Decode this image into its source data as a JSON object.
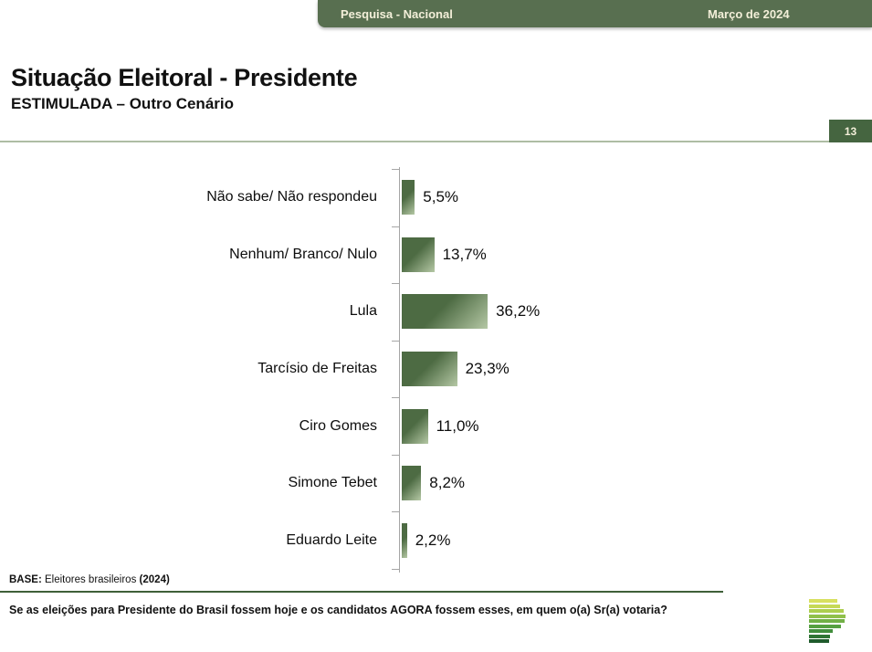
{
  "banner": {
    "left_label": "Pesquisa - Nacional",
    "right_label": "Março de 2024"
  },
  "header": {
    "title": "Situação Eleitoral - Presidente",
    "subtitle": "ESTIMULADA – Outro Cenário",
    "page_number": "13"
  },
  "chart_data": {
    "type": "bar",
    "orientation": "horizontal",
    "title": "Situação Eleitoral - Presidente (Estimulada – Outro Cenário)",
    "categories": [
      "Não sabe/ Não respondeu",
      "Nenhum/ Branco/ Nulo",
      "Lula",
      "Tarcísio de Freitas",
      "Ciro Gomes",
      "Simone Tebet",
      "Eduardo Leite"
    ],
    "values": [
      5.5,
      13.7,
      36.2,
      23.3,
      11.0,
      8.2,
      2.2
    ],
    "value_labels": [
      "5,5%",
      "13,7%",
      "36,2%",
      "23,3%",
      "11,0%",
      "8,2%",
      "2,2%"
    ],
    "unit": "%",
    "xlim": [
      0,
      100
    ],
    "grid": false,
    "legend": false,
    "data_labels_position": "outside-end"
  },
  "footer": {
    "base_label": "BASE:",
    "base_text": "Eleitores brasileiros",
    "base_year": "(2024)",
    "question": "Se as eleições para Presidente do Brasil fossem hoje e os candidatos AGORA fossem esses, em quem o(a) Sr(a) votaria?"
  },
  "colors": {
    "banner_green": "#586F50",
    "badge_green": "#456540",
    "cream_text": "#F3EFD9",
    "title_rule": "#AEBDA4",
    "bar_dark": "#4D6B43",
    "bar_light": "#B5C8A5",
    "question_rule": "#3E5F38",
    "axis_gray": "#A6A6A6"
  },
  "logo": {
    "name": "pollster-bar-stack-logo",
    "rows": [
      {
        "color": "#D8E060",
        "width": 31
      },
      {
        "color": "#C6D957",
        "width": 34
      },
      {
        "color": "#ADCE4F",
        "width": 38
      },
      {
        "color": "#90C04B",
        "width": 40
      },
      {
        "color": "#72B046",
        "width": 39
      },
      {
        "color": "#56A041",
        "width": 35
      },
      {
        "color": "#418D3C",
        "width": 26
      },
      {
        "color": "#2F7434",
        "width": 23
      },
      {
        "color": "#1F5B2C",
        "width": 22
      }
    ]
  }
}
